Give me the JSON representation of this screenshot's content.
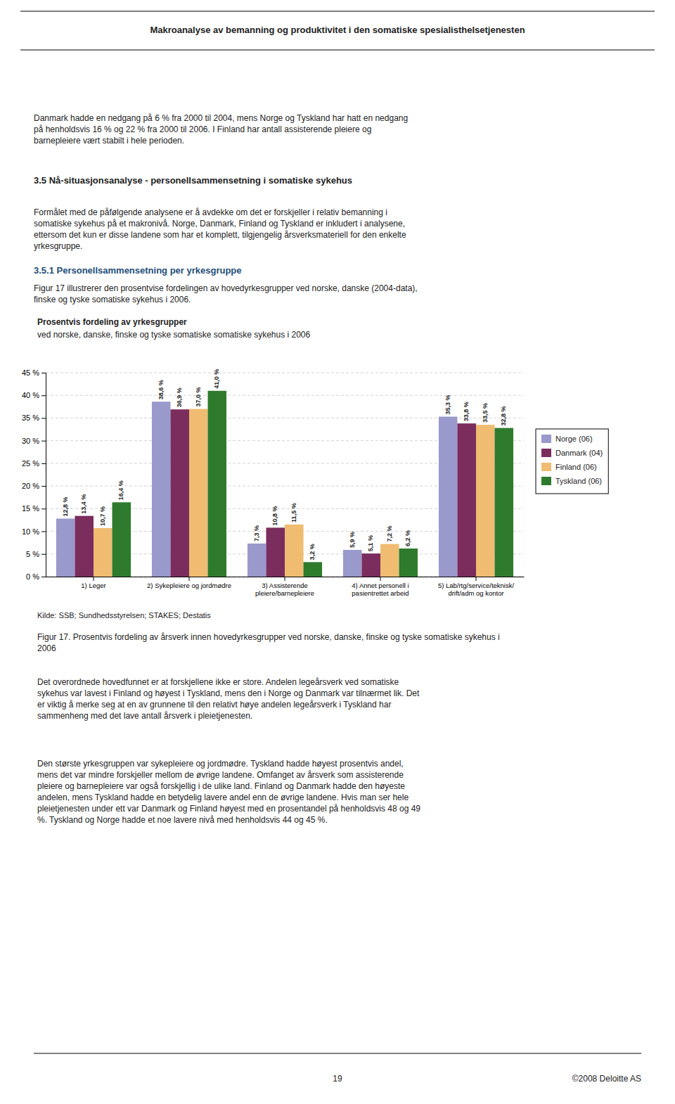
{
  "header_text": "Makroanalyse av bemanning og produktivitet i den somatiske spesialisthelsetjenesten",
  "intro_text": "Danmark hadde en nedgang på 6 % fra 2000 til 2004, mens Norge og Tyskland har hatt en nedgang\npå henholdsvis 16 % og 22 % fra 2000 til 2006. I Finland har antall assisterende pleiere og\nbarnepleiere vært stabilt i hele perioden.",
  "section_heading": "3.5   Nå-situasjonsanalyse - personellsammensetning i somatiske sykehus",
  "section_body": "Formålet med de påfølgende analysene er å avdekke om det er forskjeller i relativ bemanning i\nsomatiske sykehus på et makronivå. Norge, Danmark, Finland og Tyskland er inkludert i analysene,\nettersom det kun er disse landene som har et komplett, tilgjengelig årsverksmateriell for den enkelte\nyrkesgruppe.",
  "subsection_heading": "3.5.1   Personellsammensetning per yrkesgruppe",
  "subsection_body": "Figur 17 illustrerer den prosentvise fordelingen av hovedyrkesgrupper ved norske, danske (2004-data),\nfinske og tyske somatiske sykehus i 2006.",
  "chart_data": {
    "type": "bar",
    "title": "Prosentvis fordeling av yrkesgrupper",
    "subtitle": "ved norske, danske, finske og tyske somatiske somatiske sykehus i 2006",
    "categories": [
      "1) Leger",
      "2) Sykepleiere og jordmødre",
      "3) Assisterende\npleiere/barnepleiere",
      "4) Annet personell i\npasientrettet arbeid",
      "5) Lab/rtg/service/teknisk/\ndrift/adm og kontor"
    ],
    "series": [
      {
        "name": "Norge (06)",
        "color": "#9999CC",
        "values": [
          12.8,
          38.6,
          7.3,
          5.9,
          35.3
        ],
        "value_labels": [
          "12,8 %",
          "38,6 %",
          "7,3 %",
          "5,9 %",
          "35,3 %"
        ]
      },
      {
        "name": "Danmark (04)",
        "color": "#7B2D5E",
        "values": [
          13.4,
          36.9,
          10.8,
          5.1,
          33.8
        ],
        "value_labels": [
          "13,4 %",
          "36,9 %",
          "10,8 %",
          "5,1 %",
          "33,8 %"
        ]
      },
      {
        "name": "Finland (06)",
        "color": "#F0BC72",
        "values": [
          10.7,
          37.0,
          11.5,
          7.2,
          33.5
        ],
        "value_labels": [
          "10,7 %",
          "37,0 %",
          "11,5 %",
          "7,2 %",
          "33,5 %"
        ]
      },
      {
        "name": "Tyskland (06)",
        "color": "#2E7B2E",
        "values": [
          16.4,
          41.0,
          3.2,
          6.2,
          32.8
        ],
        "value_labels": [
          "16,4 %",
          "41,0 %",
          "3,2 %",
          "6,2 %",
          "32,8 %"
        ]
      }
    ],
    "ylim": [
      0,
      45
    ],
    "yticks": [
      {
        "value": 0,
        "label": "0 %"
      },
      {
        "value": 5,
        "label": "5 %"
      },
      {
        "value": 10,
        "label": "10 %"
      },
      {
        "value": 15,
        "label": "15 %"
      },
      {
        "value": 20,
        "label": "20 %"
      },
      {
        "value": 25,
        "label": "25 %"
      },
      {
        "value": 30,
        "label": "30 %"
      },
      {
        "value": 35,
        "label": "35 %"
      },
      {
        "value": 40,
        "label": "40 %"
      },
      {
        "value": 45,
        "label": "45 %"
      }
    ],
    "grid": true,
    "legend": "right",
    "data_labels": true
  },
  "source_text": "Kilde:  SSB; Sundhedsstyrelsen; STAKES; Destatis",
  "figure_caption": "Figur 17. Prosentvis fordeling av årsverk innen hovedyrkesgrupper ved norske, danske, finske og tyske somatiske sykehus i\n2006",
  "body_text1": "Det overordnede hovedfunnet er at forskjellene ikke er store. Andelen legeårsverk ved somatiske\nsykehus var lavest i Finland og høyest i Tyskland, mens den i Norge og Danmark var tilnærmet lik. Det\ner viktig å merke seg at en av grunnene til den relativt høye andelen legeårsverk i Tyskland har\nsammenheng med det lave antall årsverk i pleietjenesten.",
  "body_text2": "Den største yrkesgruppen var sykepleiere og jordmødre. Tyskland hadde høyest prosentvis andel,\nmens det var mindre forskjeller mellom de øvrige landene. Omfanget av årsverk som assisterende\npleiere og barnepleiere var også forskjellig i de ulike land. Finland og Danmark hadde den høyeste\nandelen, mens Tyskland hadde en betydelig lavere andel enn de øvrige landene. Hvis man ser hele\npleietjenesten under ett var Danmark og Finland høyest med en prosentandel på henholdsvis 48 og 49\n%. Tyskland og Norge hadde et noe lavere nivå med henholdsvis 44 og 45 %.",
  "footer_page": "19",
  "footer_right": "©2008 Deloitte AS"
}
